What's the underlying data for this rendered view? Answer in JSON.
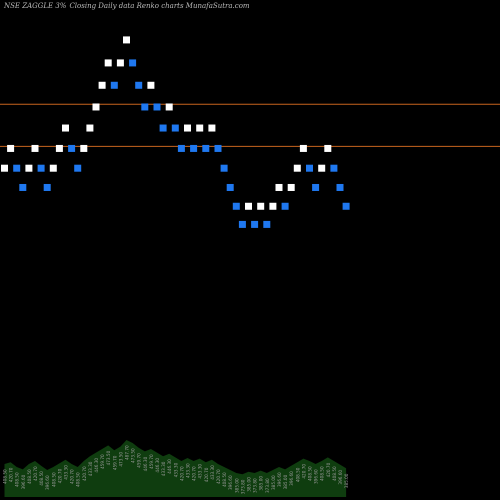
{
  "header": {
    "symbol": "NSE ZAGGLE 3%",
    "caption": "Closing Daily data  Renko  charts MunafaSutra.com"
  },
  "chart_data": {
    "type": "renko",
    "title": "NSE ZAGGLE 3% Closing Daily data Renko charts MunafaSutra.com",
    "brick_size_percent": 3,
    "ylim": [
      216,
      500
    ],
    "horizontal_lines": [
      {
        "value": 448,
        "color": "#c8641e"
      },
      {
        "value": 422,
        "color": "#c8641e"
      }
    ],
    "colors": {
      "up": "#ffffff",
      "down": "#1f78f0",
      "volume": "#0f3d0f"
    },
    "bricks": [
      {
        "close": 408.5,
        "dir": "up"
      },
      {
        "close": 420.7,
        "dir": "up"
      },
      {
        "close": 408.5,
        "dir": "down"
      },
      {
        "close": 396.6,
        "dir": "down"
      },
      {
        "close": 408.5,
        "dir": "up"
      },
      {
        "close": 420.7,
        "dir": "up"
      },
      {
        "close": 408.5,
        "dir": "down"
      },
      {
        "close": 396.6,
        "dir": "down"
      },
      {
        "close": 408.5,
        "dir": "up"
      },
      {
        "close": 420.7,
        "dir": "up"
      },
      {
        "close": 433.3,
        "dir": "up"
      },
      {
        "close": 420.7,
        "dir": "down"
      },
      {
        "close": 408.5,
        "dir": "down"
      },
      {
        "close": 420.7,
        "dir": "up"
      },
      {
        "close": 433.3,
        "dir": "up"
      },
      {
        "close": 446.3,
        "dir": "up"
      },
      {
        "close": 459.7,
        "dir": "up"
      },
      {
        "close": 473.5,
        "dir": "up"
      },
      {
        "close": 459.7,
        "dir": "down"
      },
      {
        "close": 473.5,
        "dir": "up"
      },
      {
        "close": 487.7,
        "dir": "up"
      },
      {
        "close": 473.5,
        "dir": "down"
      },
      {
        "close": 459.7,
        "dir": "down"
      },
      {
        "close": 446.3,
        "dir": "down"
      },
      {
        "close": 459.7,
        "dir": "up"
      },
      {
        "close": 446.3,
        "dir": "down"
      },
      {
        "close": 433.3,
        "dir": "down"
      },
      {
        "close": 446.3,
        "dir": "up"
      },
      {
        "close": 433.3,
        "dir": "down"
      },
      {
        "close": 420.7,
        "dir": "down"
      },
      {
        "close": 433.3,
        "dir": "up"
      },
      {
        "close": 420.7,
        "dir": "down"
      },
      {
        "close": 433.3,
        "dir": "up"
      },
      {
        "close": 420.7,
        "dir": "down"
      },
      {
        "close": 433.3,
        "dir": "up"
      },
      {
        "close": 420.7,
        "dir": "down"
      },
      {
        "close": 408.5,
        "dir": "down"
      },
      {
        "close": 396.6,
        "dir": "down"
      },
      {
        "close": 385.0,
        "dir": "down"
      },
      {
        "close": 373.8,
        "dir": "down"
      },
      {
        "close": 385.0,
        "dir": "up"
      },
      {
        "close": 373.8,
        "dir": "down"
      },
      {
        "close": 385.0,
        "dir": "up"
      },
      {
        "close": 373.8,
        "dir": "down"
      },
      {
        "close": 385.0,
        "dir": "up"
      },
      {
        "close": 396.6,
        "dir": "up"
      },
      {
        "close": 385.0,
        "dir": "down"
      },
      {
        "close": 396.6,
        "dir": "up"
      },
      {
        "close": 408.5,
        "dir": "up"
      },
      {
        "close": 420.7,
        "dir": "up"
      },
      {
        "close": 408.5,
        "dir": "down"
      },
      {
        "close": 396.6,
        "dir": "down"
      },
      {
        "close": 408.5,
        "dir": "up"
      },
      {
        "close": 420.7,
        "dir": "up"
      },
      {
        "close": 408.5,
        "dir": "down"
      },
      {
        "close": 396.6,
        "dir": "down"
      },
      {
        "close": 385.0,
        "dir": "down"
      }
    ],
    "volume_area": [
      0.55,
      0.58,
      0.5,
      0.46,
      0.55,
      0.6,
      0.52,
      0.45,
      0.5,
      0.56,
      0.62,
      0.55,
      0.5,
      0.6,
      0.68,
      0.74,
      0.8,
      0.86,
      0.78,
      0.84,
      0.95,
      0.9,
      0.82,
      0.76,
      0.8,
      0.74,
      0.68,
      0.72,
      0.66,
      0.6,
      0.65,
      0.6,
      0.64,
      0.58,
      0.62,
      0.55,
      0.5,
      0.45,
      0.4,
      0.38,
      0.42,
      0.4,
      0.44,
      0.4,
      0.45,
      0.5,
      0.46,
      0.52,
      0.58,
      0.64,
      0.6,
      0.55,
      0.6,
      0.66,
      0.6,
      0.54,
      0.48
    ]
  }
}
